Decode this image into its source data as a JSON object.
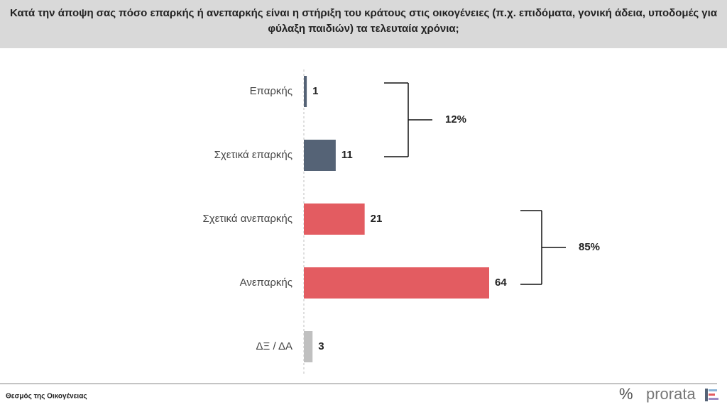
{
  "chart_data": {
    "type": "hbar",
    "title": "Κατά την άποψη σας πόσο επαρκής ή ανεπαρκής είναι η στήριξη του κράτους στις οικογένειες (π.χ. επιδόματα, γονική άδεια, υποδομές για φύλαξη παιδιών) τα τελευταία χρόνια;",
    "categories": [
      "Επαρκής",
      "Σχετικά επαρκής",
      "Σχετικά ανεπαρκής",
      "Ανεπαρκής",
      "ΔΞ / ΔΑ"
    ],
    "values": [
      1,
      11,
      21,
      64,
      3
    ],
    "colors": [
      "#556376",
      "#556376",
      "#e35c61",
      "#e35c61",
      "#c0c0c0"
    ],
    "annotations": [
      "12%",
      "85%"
    ]
  },
  "footer": {
    "source": "Θεσμός της Οικογένειας",
    "logo_mark": "%",
    "logo": "prorata"
  }
}
